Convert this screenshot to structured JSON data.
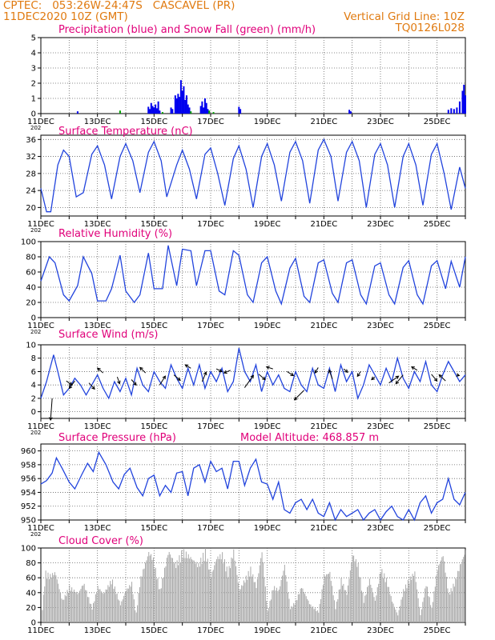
{
  "header": {
    "line1": "CPTEC:   053:26W-24:47S   CASCAVEL (PR)",
    "line2": "11DEC2020 10Z (GMT)",
    "grid_note": "Vertical Grid Line: 10Z",
    "code": "TQ0126L028"
  },
  "colors": {
    "header": "#e07a10",
    "title": "#e0007a",
    "precip": "#0000ee",
    "snow": "#00a000",
    "line": "#2244dd",
    "cloud": "#a9a9a9",
    "arrow": "#000000"
  },
  "x_axis": {
    "start_day": 11,
    "end_day": 26,
    "tick_labels": [
      "11DEC",
      "13DEC",
      "15DEC",
      "17DEC",
      "19DEC",
      "21DEC",
      "23DEC",
      "25DEC"
    ],
    "year_stub": "202"
  },
  "chart_data": [
    {
      "id": "precip",
      "type": "bar",
      "title": "Precipitation (blue) and Snow Fall (green) (mm/h)",
      "ylim": [
        0,
        5
      ],
      "yticks": [
        0,
        1,
        2,
        3,
        4,
        5
      ],
      "series": [
        {
          "name": "Precipitation",
          "color": "#0000ee",
          "points": [
            [
              12.3,
              0.15
            ],
            [
              14.8,
              0.45
            ],
            [
              14.85,
              0.3
            ],
            [
              14.9,
              0.7
            ],
            [
              14.95,
              0.5
            ],
            [
              15.0,
              0.4
            ],
            [
              15.05,
              0.6
            ],
            [
              15.1,
              0.35
            ],
            [
              15.15,
              0.8
            ],
            [
              15.2,
              0.2
            ],
            [
              15.6,
              0.4
            ],
            [
              15.65,
              0.3
            ],
            [
              15.75,
              1.2
            ],
            [
              15.8,
              1.0
            ],
            [
              15.85,
              1.3
            ],
            [
              15.9,
              1.1
            ],
            [
              15.95,
              2.2
            ],
            [
              16.0,
              1.5
            ],
            [
              16.05,
              1.8
            ],
            [
              16.1,
              0.9
            ],
            [
              16.15,
              1.2
            ],
            [
              16.2,
              0.6
            ],
            [
              16.25,
              0.4
            ],
            [
              16.65,
              0.5
            ],
            [
              16.7,
              0.8
            ],
            [
              16.75,
              0.4
            ],
            [
              16.8,
              1.0
            ],
            [
              16.85,
              0.7
            ],
            [
              16.9,
              0.3
            ],
            [
              18.0,
              0.45
            ],
            [
              18.05,
              0.3
            ],
            [
              21.9,
              0.25
            ],
            [
              21.95,
              0.15
            ],
            [
              25.4,
              0.25
            ],
            [
              25.5,
              0.35
            ],
            [
              25.6,
              0.3
            ],
            [
              25.7,
              0.4
            ],
            [
              25.8,
              0.8
            ],
            [
              25.9,
              1.5
            ],
            [
              25.95,
              1.9
            ],
            [
              26.0,
              1.2
            ]
          ]
        },
        {
          "name": "Snow Fall",
          "color": "#00a000",
          "points": [
            [
              13.8,
              0.2
            ],
            [
              15.3,
              0.1
            ],
            [
              16.3,
              0.15
            ],
            [
              16.95,
              0.2
            ],
            [
              17.1,
              0.1
            ]
          ]
        }
      ]
    },
    {
      "id": "temp",
      "type": "line",
      "title": "Surface Temperature (nC)",
      "ylim": [
        18,
        37
      ],
      "yticks": [
        20,
        24,
        28,
        32,
        36
      ],
      "x": [
        11.0,
        11.2,
        11.35,
        11.6,
        11.8,
        12.0,
        12.25,
        12.5,
        12.8,
        13.0,
        13.25,
        13.5,
        13.8,
        14.0,
        14.25,
        14.5,
        14.8,
        15.0,
        15.25,
        15.45,
        15.8,
        16.0,
        16.25,
        16.5,
        16.8,
        17.0,
        17.25,
        17.5,
        17.8,
        18.0,
        18.25,
        18.5,
        18.8,
        19.0,
        19.25,
        19.5,
        19.8,
        20.0,
        20.25,
        20.5,
        20.8,
        21.0,
        21.25,
        21.5,
        21.8,
        22.0,
        22.25,
        22.5,
        22.8,
        23.0,
        23.25,
        23.5,
        23.8,
        24.0,
        24.25,
        24.5,
        24.8,
        25.0,
        25.25,
        25.5,
        25.8,
        26.0
      ],
      "y": [
        24.5,
        19.0,
        19.0,
        30.0,
        33.5,
        32.0,
        22.5,
        23.5,
        32.5,
        34.5,
        30.0,
        22.0,
        32.0,
        35.0,
        31.0,
        23.5,
        33.0,
        35.5,
        31.0,
        22.5,
        30.0,
        33.5,
        29.0,
        22.0,
        32.5,
        34.0,
        28.0,
        20.5,
        31.5,
        34.5,
        29.0,
        20.0,
        32.0,
        35.0,
        30.0,
        21.5,
        33.0,
        35.5,
        31.0,
        21.0,
        33.5,
        36.0,
        32.0,
        21.5,
        33.0,
        35.5,
        31.0,
        20.0,
        32.5,
        35.0,
        30.0,
        20.0,
        32.0,
        35.0,
        30.0,
        20.5,
        32.5,
        35.0,
        28.0,
        19.5,
        29.5,
        24.5
      ]
    },
    {
      "id": "rh",
      "type": "line",
      "title": "Relative Humidity (%)",
      "ylim": [
        0,
        100
      ],
      "yticks": [
        0,
        20,
        40,
        60,
        80,
        100
      ],
      "x": [
        11.0,
        11.3,
        11.5,
        11.8,
        12.0,
        12.3,
        12.5,
        12.8,
        13.0,
        13.3,
        13.5,
        13.8,
        14.0,
        14.3,
        14.5,
        14.8,
        15.0,
        15.3,
        15.5,
        15.8,
        16.0,
        16.3,
        16.5,
        16.8,
        17.0,
        17.3,
        17.5,
        17.8,
        18.0,
        18.3,
        18.5,
        18.8,
        19.0,
        19.3,
        19.5,
        19.8,
        20.0,
        20.3,
        20.5,
        20.8,
        21.0,
        21.3,
        21.5,
        21.8,
        22.0,
        22.3,
        22.5,
        22.8,
        23.0,
        23.3,
        23.5,
        23.8,
        24.0,
        24.3,
        24.5,
        24.8,
        25.0,
        25.3,
        25.5,
        25.8,
        26.0
      ],
      "y": [
        48,
        80,
        72,
        30,
        22,
        42,
        80,
        58,
        22,
        22,
        38,
        82,
        35,
        20,
        30,
        85,
        38,
        38,
        95,
        42,
        90,
        88,
        42,
        88,
        88,
        35,
        30,
        88,
        82,
        30,
        20,
        72,
        80,
        35,
        18,
        65,
        78,
        28,
        20,
        72,
        76,
        32,
        20,
        72,
        76,
        30,
        18,
        68,
        72,
        30,
        18,
        66,
        75,
        30,
        18,
        68,
        75,
        38,
        74,
        40,
        80
      ]
    },
    {
      "id": "wind",
      "type": "line",
      "title": "Surface Wind (m/s)",
      "ylim": [
        -1,
        10
      ],
      "yticks": [
        0,
        2,
        4,
        6,
        8,
        10
      ],
      "x": [
        11.0,
        11.2,
        11.45,
        11.6,
        11.8,
        12.0,
        12.2,
        12.4,
        12.6,
        12.8,
        13.0,
        13.2,
        13.4,
        13.6,
        13.8,
        14.0,
        14.2,
        14.4,
        14.6,
        14.8,
        15.0,
        15.2,
        15.4,
        15.6,
        15.8,
        16.0,
        16.2,
        16.4,
        16.6,
        16.8,
        17.0,
        17.2,
        17.4,
        17.6,
        17.8,
        18.0,
        18.2,
        18.4,
        18.6,
        18.8,
        19.0,
        19.2,
        19.4,
        19.6,
        19.8,
        20.0,
        20.2,
        20.4,
        20.6,
        20.8,
        21.0,
        21.2,
        21.4,
        21.6,
        21.8,
        22.0,
        22.2,
        22.4,
        22.6,
        22.8,
        23.0,
        23.2,
        23.4,
        23.6,
        23.8,
        24.0,
        24.2,
        24.4,
        24.6,
        24.8,
        25.0,
        25.2,
        25.4,
        25.6,
        25.8,
        26.0
      ],
      "y": [
        2.0,
        4.5,
        8.5,
        6.0,
        2.5,
        3.5,
        5.0,
        4.0,
        2.5,
        4.0,
        5.5,
        3.5,
        2.0,
        4.5,
        3.0,
        5.0,
        2.5,
        6.5,
        4.0,
        3.0,
        6.0,
        4.5,
        3.5,
        7.0,
        5.0,
        3.5,
        6.5,
        4.0,
        7.0,
        3.5,
        6.0,
        4.5,
        6.5,
        3.0,
        4.5,
        9.5,
        6.0,
        4.5,
        7.0,
        3.0,
        6.0,
        4.0,
        5.5,
        3.5,
        3.0,
        6.0,
        4.0,
        3.0,
        6.5,
        4.0,
        3.5,
        6.5,
        3.0,
        7.0,
        4.5,
        6.0,
        2.0,
        4.0,
        7.0,
        5.5,
        4.0,
        6.5,
        4.5,
        8.0,
        5.0,
        3.5,
        6.0,
        4.5,
        7.5,
        4.0,
        3.0,
        5.5,
        7.5,
        6.0,
        4.5,
        5.5
      ],
      "arrows": [
        [
          11.4,
          2,
          -0.2,
          -3.2
        ],
        [
          11.9,
          4.6,
          0.7,
          -0.6
        ],
        [
          12.2,
          4.6,
          -0.7,
          -1.1
        ],
        [
          12.7,
          4.3,
          0.7,
          -0.9
        ],
        [
          13.2,
          5.8,
          -0.7,
          0.7
        ],
        [
          13.7,
          5.2,
          0.3,
          -1.0
        ],
        [
          14.2,
          4.8,
          0.6,
          -0.8
        ],
        [
          14.7,
          5.8,
          -0.7,
          0.8
        ],
        [
          15.2,
          4.0,
          0.7,
          1.3
        ],
        [
          15.7,
          5.5,
          0.8,
          -0.8
        ],
        [
          16.3,
          6.5,
          -0.7,
          0.5
        ],
        [
          16.7,
          4.5,
          0.5,
          1.4
        ],
        [
          17.2,
          6.4,
          0.7,
          -0.4
        ],
        [
          17.7,
          6.2,
          -0.8,
          -0.4
        ],
        [
          18.2,
          3.6,
          1.1,
          1.8
        ],
        [
          18.7,
          5.6,
          0.8,
          -0.8
        ],
        [
          19.2,
          6.4,
          -0.8,
          0.3
        ],
        [
          19.7,
          6.0,
          0.8,
          -0.6
        ],
        [
          20.3,
          3.2,
          -1.2,
          -1.4
        ],
        [
          20.8,
          6.6,
          -0.4,
          -0.8
        ],
        [
          21.3,
          4.9,
          -0.4,
          1.3
        ],
        [
          21.7,
          6.4,
          0.5,
          -0.5
        ],
        [
          22.3,
          6.0,
          -0.4,
          -0.7
        ],
        [
          22.8,
          5.2,
          -0.4,
          -0.4
        ],
        [
          23.3,
          4.3,
          1.2,
          1.0
        ],
        [
          23.8,
          5.5,
          -0.9,
          -1.3
        ],
        [
          24.3,
          6.2,
          -0.7,
          0.5
        ],
        [
          24.8,
          5.6,
          0.7,
          -1.0
        ],
        [
          25.3,
          4.6,
          -0.8,
          0.9
        ],
        [
          25.7,
          5.5,
          0.3,
          -0.1
        ]
      ]
    },
    {
      "id": "pres",
      "type": "line",
      "title": "Surface Pressure (hPa)",
      "subtitle": "Model Altitude: 468.857 m",
      "ylim": [
        950,
        961
      ],
      "yticks": [
        950,
        952,
        954,
        956,
        958,
        960
      ],
      "x": [
        11.0,
        11.2,
        11.4,
        11.55,
        11.75,
        12.0,
        12.2,
        12.45,
        12.65,
        12.85,
        13.05,
        13.3,
        13.55,
        13.75,
        13.95,
        14.15,
        14.4,
        14.6,
        14.8,
        15.0,
        15.2,
        15.4,
        15.6,
        15.8,
        16.0,
        16.2,
        16.4,
        16.6,
        16.8,
        17.0,
        17.2,
        17.4,
        17.6,
        17.8,
        18.0,
        18.2,
        18.4,
        18.6,
        18.8,
        19.0,
        19.2,
        19.4,
        19.6,
        19.8,
        20.0,
        20.2,
        20.4,
        20.6,
        20.8,
        21.0,
        21.2,
        21.4,
        21.6,
        21.8,
        22.0,
        22.2,
        22.4,
        22.6,
        22.8,
        23.0,
        23.2,
        23.4,
        23.6,
        23.8,
        24.0,
        24.2,
        24.4,
        24.6,
        24.8,
        25.0,
        25.2,
        25.4,
        25.6,
        25.8,
        26.0
      ],
      "y": [
        955.2,
        955.7,
        956.8,
        959.0,
        957.5,
        955.5,
        954.5,
        956.6,
        958.2,
        957.0,
        959.8,
        958.0,
        955.5,
        954.5,
        956.6,
        957.5,
        954.7,
        953.5,
        956.0,
        956.5,
        953.5,
        955.0,
        954.0,
        956.8,
        957.0,
        953.5,
        957.5,
        958.0,
        955.5,
        958.5,
        957.0,
        957.5,
        954.5,
        958.5,
        958.5,
        955.0,
        957.5,
        958.8,
        955.5,
        955.2,
        953.0,
        955.5,
        951.5,
        951.0,
        952.5,
        953.0,
        951.5,
        953.0,
        951.0,
        950.5,
        952.5,
        950.0,
        951.5,
        950.5,
        951.0,
        951.5,
        950.0,
        951.0,
        951.5,
        950.0,
        951.2,
        952.0,
        950.5,
        950.0,
        951.5,
        950.0,
        952.5,
        953.5,
        951.0,
        952.5,
        953.0,
        956.0,
        953.0,
        952.2,
        954.0
      ]
    },
    {
      "id": "cloud",
      "type": "area",
      "title": "Cloud Cover (%)",
      "ylim": [
        0,
        100
      ],
      "yticks": [
        0,
        20,
        40,
        60,
        80,
        100
      ],
      "x": [
        11.0,
        11.15,
        11.3,
        11.5,
        11.75,
        12.0,
        12.3,
        12.5,
        12.8,
        13.0,
        13.2,
        13.5,
        13.8,
        14.0,
        14.2,
        14.35,
        14.5,
        14.8,
        14.95,
        15.2,
        15.5,
        15.75,
        16.0,
        16.3,
        16.55,
        16.8,
        17.0,
        17.2,
        17.4,
        17.6,
        17.8,
        18.0,
        18.2,
        18.4,
        18.6,
        18.8,
        19.0,
        19.2,
        19.4,
        19.6,
        19.8,
        20.0,
        20.2,
        20.5,
        20.8,
        21.0,
        21.2,
        21.4,
        21.6,
        21.8,
        22.0,
        22.2,
        22.4,
        22.6,
        22.8,
        23.0,
        23.2,
        23.4,
        23.6,
        23.8,
        24.0,
        24.2,
        24.4,
        24.6,
        24.8,
        25.0,
        25.2,
        25.4,
        25.6,
        25.8,
        26.0
      ],
      "y": [
        0,
        70,
        65,
        70,
        30,
        50,
        40,
        55,
        20,
        50,
        40,
        60,
        25,
        45,
        55,
        10,
        60,
        98,
        90,
        45,
        100,
        80,
        100,
        90,
        80,
        100,
        65,
        90,
        95,
        70,
        100,
        45,
        60,
        75,
        50,
        100,
        15,
        50,
        45,
        80,
        20,
        30,
        50,
        25,
        15,
        65,
        70,
        20,
        60,
        40,
        95,
        80,
        30,
        60,
        30,
        75,
        60,
        30,
        10,
        45,
        60,
        70,
        10,
        55,
        20,
        75,
        95,
        40,
        55,
        80,
        100
      ]
    }
  ]
}
